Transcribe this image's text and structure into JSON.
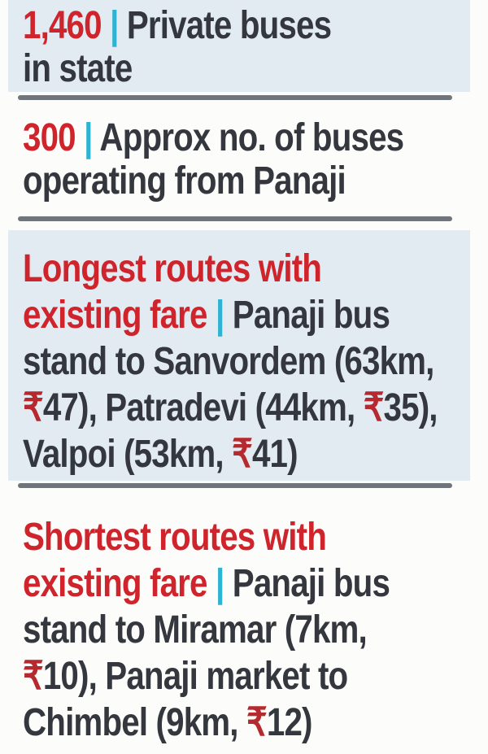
{
  "colors": {
    "accent_red": "#cf242c",
    "accent_teal": "#2fb3d2",
    "rupee_red": "#b5292f",
    "text_dark": "#34373d",
    "panel_blue": "#e2eaf2",
    "panel_white": "#fbfbf9",
    "divider_gray": "#70757b",
    "page_bg": "#fcfcfa"
  },
  "stats": {
    "private_buses_in_state": "1,460",
    "buses_operating_from_panaji": "300"
  },
  "sections": [
    {
      "name": "private-buses-in-state",
      "highlighted": true,
      "lines": [
        [
          {
            "t": "1,460",
            "s": "red"
          },
          {
            "t": " | ",
            "s": "teal"
          },
          {
            "t": "Private buses",
            "s": "dark"
          }
        ],
        [
          {
            "t": "in state",
            "s": "dark"
          }
        ]
      ]
    },
    {
      "name": "buses-operating-from-panaji",
      "highlighted": false,
      "lines": [
        [
          {
            "t": "300",
            "s": "red"
          },
          {
            "t": " | ",
            "s": "teal"
          },
          {
            "t": "Approx no. of buses",
            "s": "dark"
          }
        ],
        [
          {
            "t": "operating from Panaji",
            "s": "dark"
          }
        ]
      ]
    },
    {
      "name": "longest-routes-with-existing-fare",
      "highlighted": true,
      "lines": [
        [
          {
            "t": "Longest routes with",
            "s": "red"
          }
        ],
        [
          {
            "t": "existing fare",
            "s": "red"
          },
          {
            "t": " | ",
            "s": "teal"
          },
          {
            "t": "Panaji bus",
            "s": "dark"
          }
        ],
        [
          {
            "t": "stand to Sanvordem (63km,",
            "s": "dark"
          }
        ],
        [
          {
            "t": "₹",
            "s": "rupee"
          },
          {
            "t": "47), Patradevi (44km, ",
            "s": "dark"
          },
          {
            "t": "₹",
            "s": "rupee"
          },
          {
            "t": "35),",
            "s": "dark"
          }
        ],
        [
          {
            "t": "Valpoi (53km, ",
            "s": "dark"
          },
          {
            "t": "₹",
            "s": "rupee"
          },
          {
            "t": "41)",
            "s": "dark"
          }
        ]
      ]
    },
    {
      "name": "shortest-routes-with-existing-fare",
      "highlighted": false,
      "lines": [
        [
          {
            "t": "Shortest routes with",
            "s": "red"
          }
        ],
        [
          {
            "t": "existing fare",
            "s": "red"
          },
          {
            "t": " | ",
            "s": "teal"
          },
          {
            "t": "Panaji bus",
            "s": "dark"
          }
        ],
        [
          {
            "t": "stand to Miramar (7km,",
            "s": "dark"
          }
        ],
        [
          {
            "t": "₹",
            "s": "rupee"
          },
          {
            "t": "10), Panaji market to",
            "s": "dark"
          }
        ],
        [
          {
            "t": "Chimbel (9km, ",
            "s": "dark"
          },
          {
            "t": "₹",
            "s": "rupee"
          },
          {
            "t": "12)",
            "s": "dark"
          }
        ]
      ]
    }
  ]
}
